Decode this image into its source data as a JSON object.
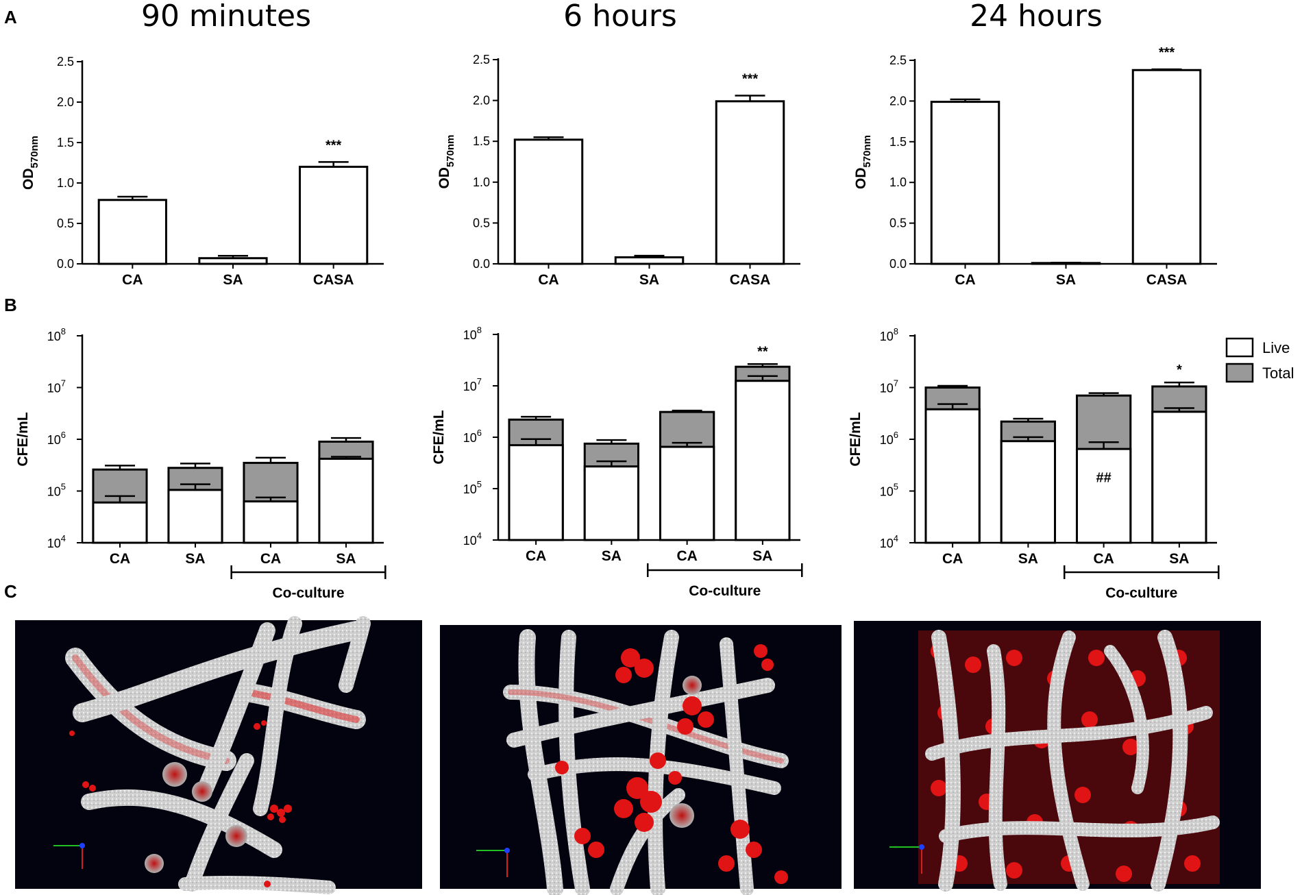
{
  "panel_labels": {
    "a": "A",
    "b": "B",
    "c": "C"
  },
  "colors": {
    "bar_fill": "#ffffff",
    "total_fill": "#999999",
    "stroke": "#000000",
    "image_bg": "#03030f",
    "hypha": "#d9d9d9",
    "stain": "#e01414"
  },
  "legend": {
    "live": "Live",
    "total": "Total"
  },
  "coculture_label": "Co-culture",
  "chart_data": [
    {
      "panel": "A",
      "type": "bar",
      "title": "90 minutes",
      "xlabel": "",
      "ylabel": "OD",
      "ylabel_sub": "570nm",
      "ylim": [
        0,
        2.5
      ],
      "yticks": [
        "0.0",
        "0.5",
        "1.0",
        "1.5",
        "2.0",
        "2.5"
      ],
      "categories": [
        "CA",
        "SA",
        "CASA"
      ],
      "values": [
        0.79,
        0.07,
        1.2
      ],
      "errors": [
        0.04,
        0.03,
        0.06
      ],
      "annotations": [
        "",
        "",
        "***"
      ]
    },
    {
      "panel": "A",
      "type": "bar",
      "title": "6 hours",
      "xlabel": "",
      "ylabel": "OD",
      "ylabel_sub": "570nm",
      "ylim": [
        0,
        2.5
      ],
      "yticks": [
        "0.0",
        "0.5",
        "1.0",
        "1.5",
        "2.0",
        "2.5"
      ],
      "categories": [
        "CA",
        "SA",
        "CASA"
      ],
      "values": [
        1.52,
        0.08,
        1.99
      ],
      "errors": [
        0.03,
        0.02,
        0.07
      ],
      "annotations": [
        "",
        "",
        "***"
      ]
    },
    {
      "panel": "A",
      "type": "bar",
      "title": "24 hours",
      "xlabel": "",
      "ylabel": "OD",
      "ylabel_sub": "570nm",
      "ylim": [
        0,
        2.5
      ],
      "yticks": [
        "0.0",
        "0.5",
        "1.0",
        "1.5",
        "2.0",
        "2.5"
      ],
      "categories": [
        "CA",
        "SA",
        "CASA"
      ],
      "values": [
        1.99,
        0.01,
        2.38
      ],
      "errors": [
        0.03,
        0.005,
        0.01
      ],
      "annotations": [
        "",
        "",
        "***"
      ]
    },
    {
      "panel": "B",
      "type": "bar",
      "scale": "log",
      "ylabel": "CFE/mL",
      "ylim": [
        10000,
        100000000
      ],
      "ytick_exponents": [
        "4",
        "5",
        "6",
        "7",
        "8"
      ],
      "ytick_base": "10",
      "categories": [
        "CA",
        "SA",
        "CA",
        "SA"
      ],
      "series": [
        {
          "name": "Total",
          "values": [
            260000,
            280000,
            350000,
            900000
          ],
          "upper_errors": [
            310000,
            340000,
            440000,
            1060000
          ]
        },
        {
          "name": "Live",
          "values": [
            60000,
            105000,
            63000,
            420000
          ],
          "upper_errors": [
            80000,
            135000,
            75000,
            460000
          ]
        }
      ],
      "annotations": [
        "",
        "",
        "",
        ""
      ]
    },
    {
      "panel": "B",
      "type": "bar",
      "scale": "log",
      "ylabel": "CFE/mL",
      "ylim": [
        10000,
        100000000
      ],
      "ytick_exponents": [
        "4",
        "5",
        "6",
        "7",
        "8"
      ],
      "ytick_base": "10",
      "categories": [
        "CA",
        "SA",
        "CA",
        "SA"
      ],
      "series": [
        {
          "name": "Total",
          "values": [
            2200000,
            750000,
            3100000,
            23500000
          ],
          "upper_errors": [
            2500000,
            880000,
            3300000,
            26500000
          ]
        },
        {
          "name": "Live",
          "values": [
            700000,
            270000,
            650000,
            12500000
          ],
          "upper_errors": [
            920000,
            340000,
            780000,
            15500000
          ]
        }
      ],
      "annotations": [
        "",
        "",
        "",
        "**"
      ]
    },
    {
      "panel": "B",
      "type": "bar",
      "scale": "log",
      "ylabel": "CFE/mL",
      "ylim": [
        10000,
        100000000
      ],
      "ytick_exponents": [
        "4",
        "5",
        "6",
        "7",
        "8"
      ],
      "ytick_base": "10",
      "categories": [
        "CA",
        "SA",
        "CA",
        "SA"
      ],
      "series": [
        {
          "name": "Total",
          "values": [
            10000000,
            2200000,
            7000000,
            10500000
          ],
          "upper_errors": [
            10800000,
            2500000,
            7800000,
            12500000
          ]
        },
        {
          "name": "Live",
          "values": [
            3800000,
            920000,
            650000,
            3400000
          ],
          "upper_errors": [
            4800000,
            1100000,
            880000,
            4000000
          ]
        }
      ],
      "annotations": [
        "",
        "",
        "##",
        "*"
      ]
    }
  ]
}
